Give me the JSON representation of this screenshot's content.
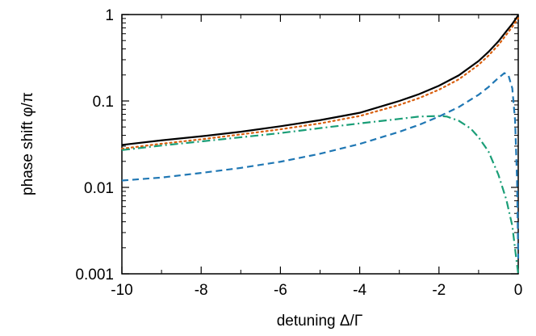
{
  "chart_data": {
    "type": "line",
    "title": "",
    "xlabel": "detuning Δ/Γ",
    "ylabel": "phase shift φ/π",
    "xlim": [
      -10,
      0
    ],
    "ylim": [
      0.001,
      1
    ],
    "yscale": "log",
    "grid": false,
    "legend": "none",
    "x_ticks": [
      -10,
      -8,
      -6,
      -4,
      -2,
      0
    ],
    "x_tick_labels": [
      "-10",
      "-8",
      "-6",
      "-4",
      "-2",
      "0"
    ],
    "y_ticks": [
      0.001,
      0.01,
      0.1,
      1
    ],
    "y_tick_labels": [
      "0.001",
      "0.01",
      "0.1",
      "1"
    ],
    "series": [
      {
        "style": "solid",
        "color": "#000000",
        "x": [
          -10,
          -9,
          -8,
          -7,
          -6,
          -5,
          -4,
          -3,
          -2.5,
          -2,
          -1.5,
          -1,
          -0.75,
          -0.5,
          -0.3,
          -0.15,
          0
        ],
        "y": [
          0.031,
          0.035,
          0.039,
          0.044,
          0.051,
          0.06,
          0.073,
          0.1,
          0.12,
          0.15,
          0.198,
          0.29,
          0.37,
          0.49,
          0.64,
          0.78,
          0.98
        ]
      },
      {
        "style": "dotted",
        "color": "#d95f0e",
        "x": [
          -10,
          -9,
          -8,
          -7,
          -6,
          -5,
          -4,
          -3,
          -2.5,
          -2,
          -1.5,
          -1,
          -0.75,
          -0.5,
          -0.3,
          -0.15,
          0
        ],
        "y": [
          0.028,
          0.032,
          0.036,
          0.041,
          0.047,
          0.055,
          0.067,
          0.09,
          0.108,
          0.135,
          0.178,
          0.262,
          0.335,
          0.445,
          0.585,
          0.72,
          0.91
        ]
      },
      {
        "style": "dashed",
        "color": "#1f77b4",
        "x": [
          -10,
          -9,
          -8,
          -7,
          -6,
          -5,
          -4,
          -3,
          -2.5,
          -2,
          -1.5,
          -1,
          -0.75,
          -0.5,
          -0.35,
          -0.25,
          -0.15,
          -0.08,
          -0.03,
          0
        ],
        "y": [
          0.012,
          0.013,
          0.0147,
          0.0168,
          0.0198,
          0.0245,
          0.0318,
          0.044,
          0.053,
          0.066,
          0.085,
          0.118,
          0.145,
          0.185,
          0.21,
          0.2,
          0.14,
          0.06,
          0.012,
          0.0015
        ]
      },
      {
        "style": "dashdot",
        "color": "#1a9e77",
        "x": [
          -10,
          -9,
          -8,
          -7,
          -6,
          -5,
          -4,
          -3,
          -2.5,
          -2,
          -1.8,
          -1.5,
          -1.2,
          -1,
          -0.75,
          -0.5,
          -0.3,
          -0.15,
          -0.05,
          0
        ],
        "y": [
          0.027,
          0.0305,
          0.034,
          0.038,
          0.0425,
          0.0485,
          0.055,
          0.062,
          0.066,
          0.067,
          0.066,
          0.059,
          0.048,
          0.038,
          0.026,
          0.014,
          0.0072,
          0.0036,
          0.0015,
          0.001
        ]
      }
    ]
  }
}
